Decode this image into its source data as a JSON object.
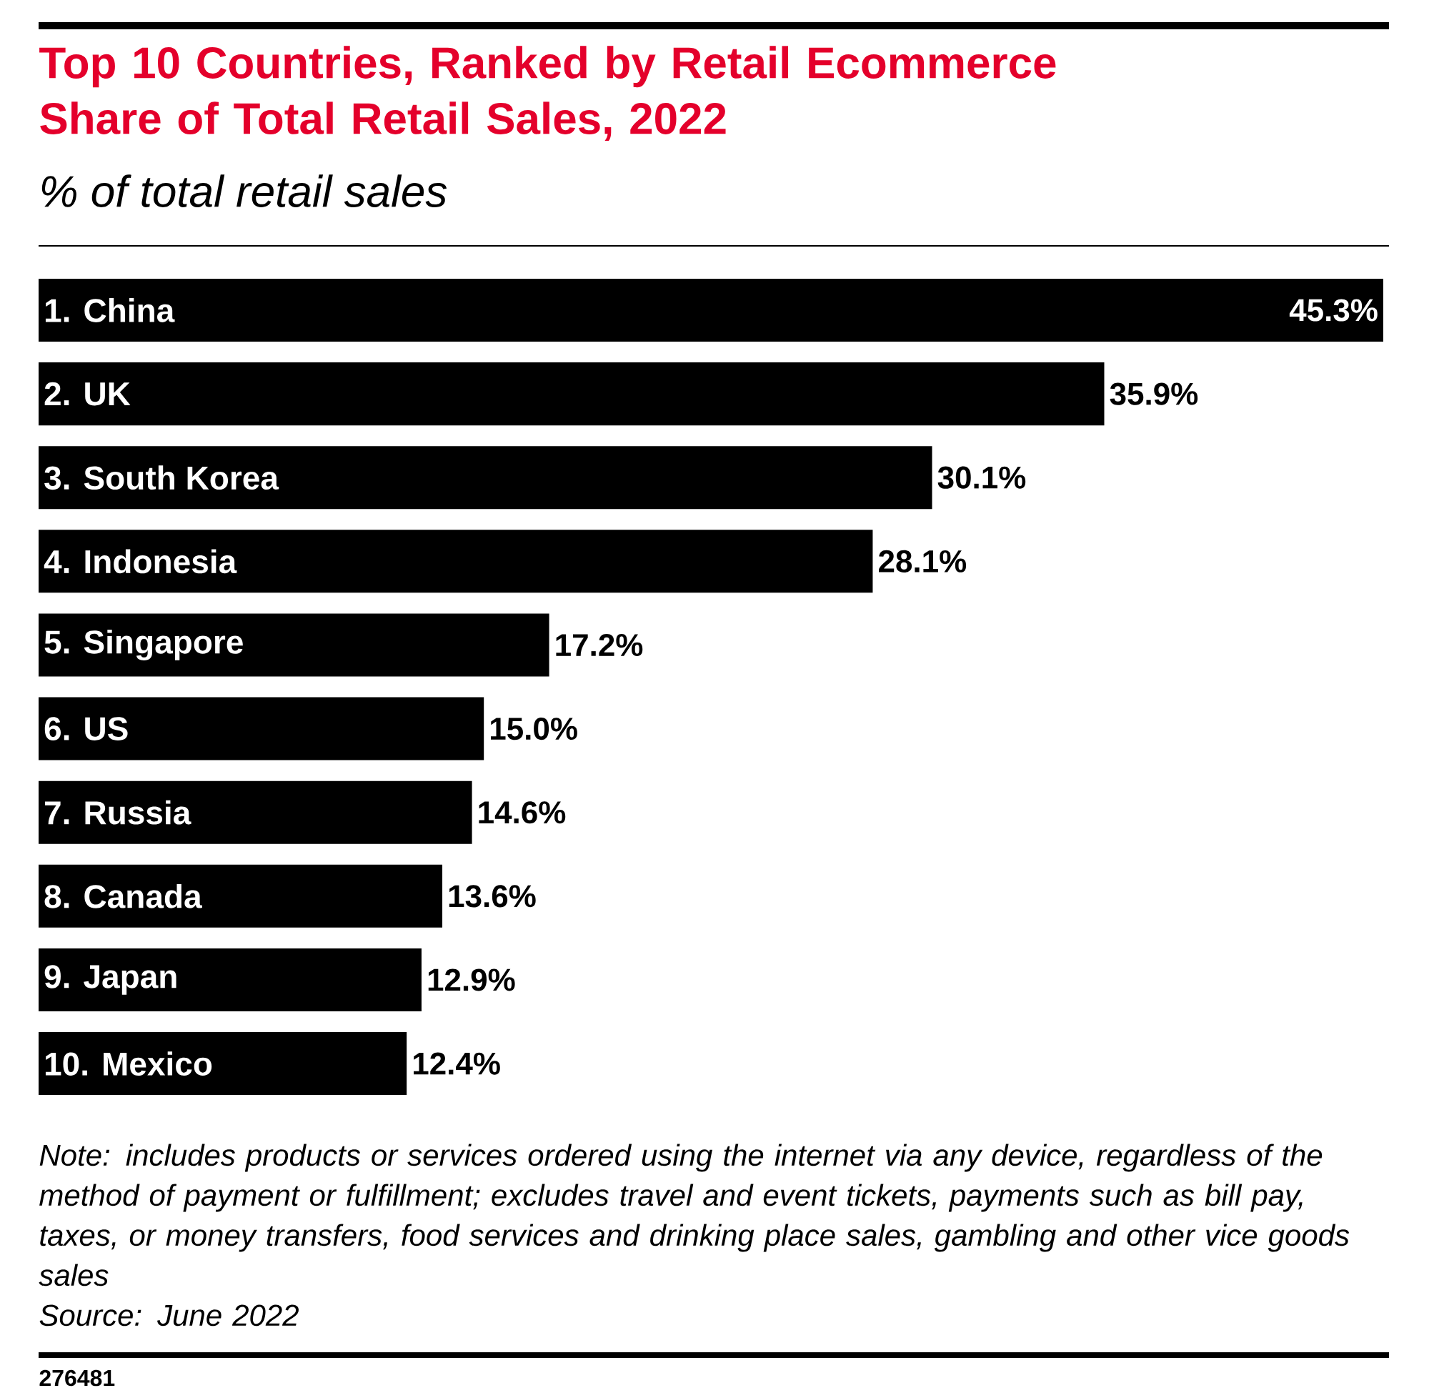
{
  "chart_data": {
    "type": "bar",
    "orientation": "horizontal",
    "title": "Top 10 Countries, Ranked by Retail Ecommerce Share of Total Retail Sales, 2022",
    "subtitle": "% of total retail sales",
    "categories": [
      "1. China",
      "2. UK",
      "3. South Korea",
      "4. Indonesia",
      "5. Singapore",
      "6. US",
      "7. Russia",
      "8. Canada",
      "9. Japan",
      "10. Mexico"
    ],
    "values": [
      45.3,
      35.9,
      30.1,
      28.1,
      17.2,
      15.0,
      14.6,
      13.6,
      12.9,
      12.4
    ],
    "value_labels": [
      "45.3%",
      "35.9%",
      "30.1%",
      "28.1%",
      "17.2%",
      "15.0%",
      "14.6%",
      "13.6%",
      "12.9%",
      "12.4%"
    ],
    "color": "#000000",
    "tick_labels": "y",
    "annotations": [
      "Note: includes products or services ordered using the internet via any device, regardless of the method of payment or fulfillment; excludes travel and event tickets, payments such as bill pay, taxes, or money transfers, food services and drinking place sales, gambling and other vice goods sales",
      "Source: June 2022",
      "276481"
    ]
  }
}
